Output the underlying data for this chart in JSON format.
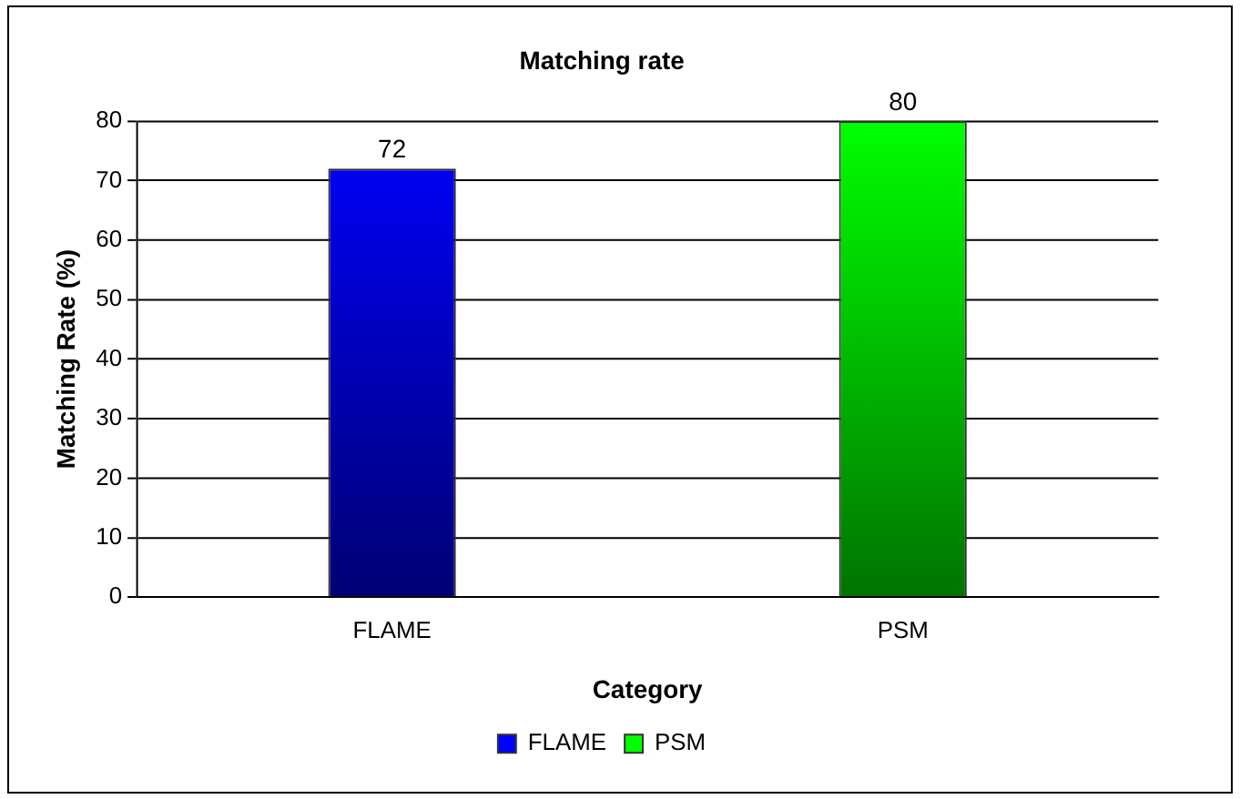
{
  "chart_data": {
    "type": "bar",
    "title": "Matching rate",
    "xlabel": "Category",
    "ylabel": "Matching Rate (%)",
    "categories": [
      "FLAME",
      "PSM"
    ],
    "series": [
      {
        "name": "FLAME",
        "color": "#0000ff",
        "values": [
          72,
          null
        ]
      },
      {
        "name": "PSM",
        "color": "#00ff00",
        "values": [
          null,
          80
        ]
      }
    ],
    "ylim": [
      0,
      80
    ],
    "yticks": [
      0,
      10,
      20,
      30,
      40,
      50,
      60,
      70,
      80
    ],
    "grid": "y",
    "legend": "bottom",
    "data_labels": true
  }
}
